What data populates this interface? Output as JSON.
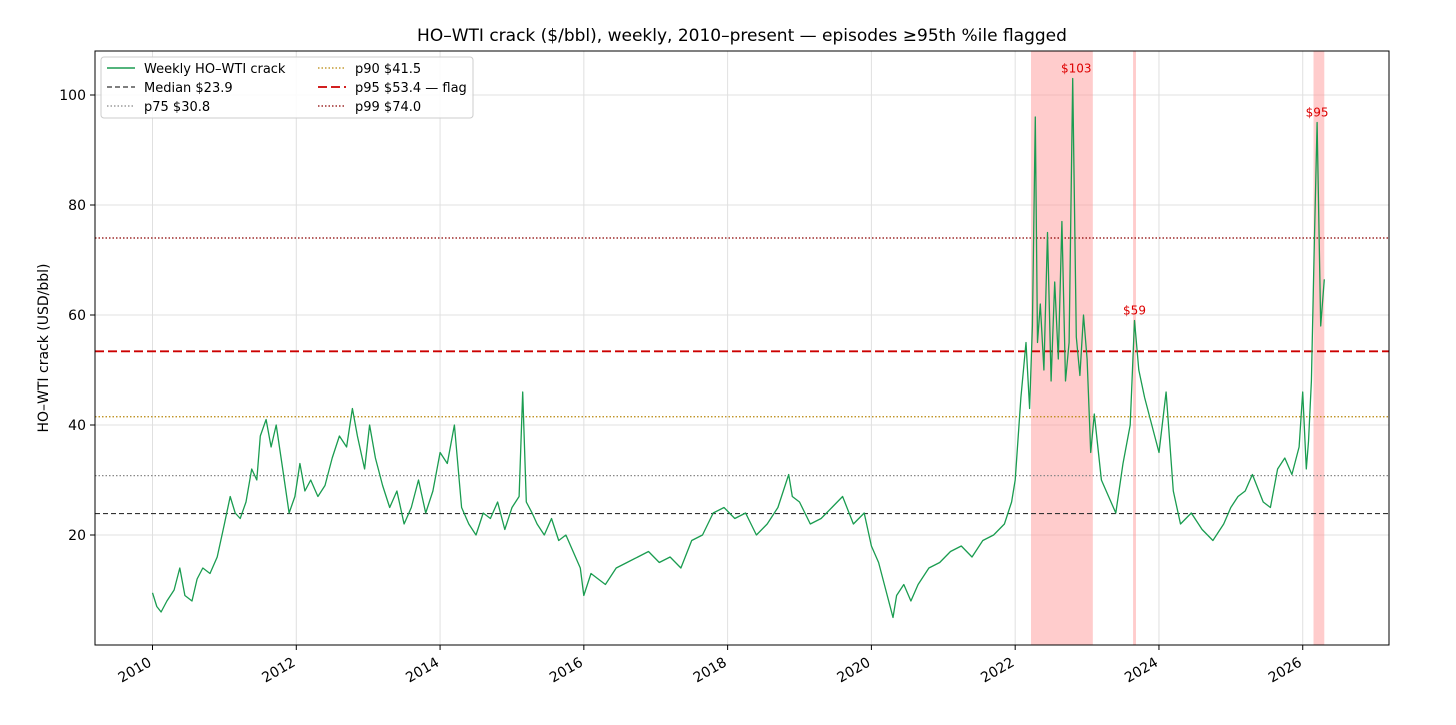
{
  "chart_data": {
    "type": "line",
    "title": "HO–WTI crack ($/bbl), weekly, 2010–present — episodes ≥95th %ile flagged",
    "xlabel": "",
    "ylabel": "HO–WTI crack (USD/bbl)",
    "xlim": [
      2009.2,
      2027.2
    ],
    "ylim": [
      0,
      108
    ],
    "x_ticks": [
      2010,
      2012,
      2014,
      2016,
      2018,
      2020,
      2022,
      2024,
      2026
    ],
    "x_tick_labels": [
      "2010",
      "2012",
      "2014",
      "2016",
      "2018",
      "2020",
      "2022",
      "2024",
      "2026"
    ],
    "y_ticks": [
      20,
      40,
      60,
      80,
      100
    ],
    "y_tick_labels": [
      "20",
      "40",
      "60",
      "80",
      "100"
    ],
    "grid": true,
    "legend_position": "top-left",
    "series": [
      {
        "name": "Weekly HO–WTI crack",
        "color": "#1a9c50",
        "x": [
          2010.0,
          2010.06,
          2010.12,
          2010.2,
          2010.3,
          2010.38,
          2010.45,
          2010.55,
          2010.62,
          2010.7,
          2010.8,
          2010.9,
          2011.0,
          2011.08,
          2011.15,
          2011.22,
          2011.3,
          2011.38,
          2011.45,
          2011.5,
          2011.58,
          2011.65,
          2011.72,
          2011.8,
          2011.9,
          2011.98,
          2012.05,
          2012.12,
          2012.2,
          2012.3,
          2012.4,
          2012.5,
          2012.6,
          2012.7,
          2012.78,
          2012.85,
          2012.95,
          2013.02,
          2013.1,
          2013.2,
          2013.3,
          2013.4,
          2013.5,
          2013.6,
          2013.7,
          2013.8,
          2013.9,
          2014.0,
          2014.1,
          2014.2,
          2014.3,
          2014.4,
          2014.5,
          2014.6,
          2014.7,
          2014.8,
          2014.9,
          2015.0,
          2015.1,
          2015.15,
          2015.2,
          2015.28,
          2015.35,
          2015.45,
          2015.55,
          2015.65,
          2015.75,
          2015.85,
          2015.95,
          2016.0,
          2016.1,
          2016.2,
          2016.3,
          2016.45,
          2016.6,
          2016.75,
          2016.9,
          2017.05,
          2017.2,
          2017.35,
          2017.5,
          2017.65,
          2017.8,
          2017.95,
          2018.1,
          2018.25,
          2018.4,
          2018.55,
          2018.7,
          2018.85,
          2018.9,
          2019.0,
          2019.15,
          2019.3,
          2019.45,
          2019.6,
          2019.75,
          2019.9,
          2020.0,
          2020.1,
          2020.2,
          2020.3,
          2020.35,
          2020.45,
          2020.55,
          2020.65,
          2020.8,
          2020.95,
          2021.1,
          2021.25,
          2021.4,
          2021.55,
          2021.7,
          2021.85,
          2021.95,
          2022.0,
          2022.08,
          2022.15,
          2022.2,
          2022.24,
          2022.28,
          2022.31,
          2022.35,
          2022.4,
          2022.45,
          2022.5,
          2022.55,
          2022.6,
          2022.65,
          2022.7,
          2022.75,
          2022.8,
          2022.85,
          2022.9,
          2022.95,
          2023.0,
          2023.05,
          2023.1,
          2023.2,
          2023.3,
          2023.4,
          2023.5,
          2023.6,
          2023.66,
          2023.72,
          2023.8,
          2023.9,
          2024.0,
          2024.1,
          2024.2,
          2024.3,
          2024.45,
          2024.6,
          2024.75,
          2024.9,
          2025.0,
          2025.1,
          2025.2,
          2025.3,
          2025.45,
          2025.55,
          2025.65,
          2025.75,
          2025.85,
          2025.95,
          2026.0,
          2026.05,
          2026.08,
          2026.12,
          2026.16,
          2026.2,
          2026.25,
          2026.3
        ],
        "y": [
          9.5,
          7,
          6,
          8,
          10,
          14,
          9,
          8,
          12,
          14,
          13,
          16,
          22,
          27,
          24,
          23,
          26,
          32,
          30,
          38,
          41,
          36,
          40,
          33,
          24,
          27,
          33,
          28,
          30,
          27,
          29,
          34,
          38,
          36,
          43,
          38,
          32,
          40,
          34,
          29,
          25,
          28,
          22,
          25,
          30,
          24,
          28,
          35,
          33,
          40,
          25,
          22,
          20,
          24,
          23,
          26,
          21,
          25,
          27,
          46,
          26,
          24,
          22,
          20,
          23,
          19,
          20,
          17,
          14,
          9,
          13,
          12,
          11,
          14,
          15,
          16,
          17,
          15,
          16,
          14,
          19,
          20,
          24,
          25,
          23,
          24,
          20,
          22,
          25,
          31,
          27,
          26,
          22,
          23,
          25,
          27,
          22,
          24,
          18,
          15,
          10,
          5,
          9,
          11,
          8,
          11,
          14,
          15,
          17,
          18,
          16,
          19,
          20,
          22,
          26,
          30,
          45,
          55,
          43,
          58,
          96,
          55,
          62,
          50,
          75,
          48,
          66,
          52,
          77,
          48,
          55,
          103,
          56,
          49,
          60,
          52,
          35,
          42,
          30,
          27,
          24,
          33,
          40,
          59,
          50,
          45,
          40,
          35,
          46,
          28,
          22,
          24,
          21,
          19,
          22,
          25,
          27,
          28,
          31,
          26,
          25,
          32,
          34,
          31,
          36,
          46,
          32,
          37,
          48,
          72,
          95,
          58,
          66.5
        ]
      }
    ],
    "reference_lines": [
      {
        "label": "Median $23.9",
        "value": 23.9,
        "color": "#333333",
        "style": "dashed"
      },
      {
        "label": "p75 $30.8",
        "value": 30.8,
        "color": "#888888",
        "style": "dotted"
      },
      {
        "label": "p90 $41.5",
        "value": 41.5,
        "color": "#b8860b",
        "style": "dotted"
      },
      {
        "label": "p95 $53.4 — flag",
        "value": 53.4,
        "color": "#cc0000",
        "style": "dashed-bold"
      },
      {
        "label": "p99 $74.0",
        "value": 74.0,
        "color": "#8b0000",
        "style": "dotted"
      }
    ],
    "flagged_episodes": [
      {
        "x_start": 2022.22,
        "x_end": 2023.08,
        "peak_x": 2022.85,
        "peak_y": 103,
        "label": "$103"
      },
      {
        "x_start": 2023.64,
        "x_end": 2023.68,
        "peak_x": 2023.66,
        "peak_y": 59,
        "label": "$59"
      },
      {
        "x_start": 2026.15,
        "x_end": 2026.3,
        "peak_x": 2026.2,
        "peak_y": 95,
        "label": "$95"
      }
    ],
    "legend": [
      "Weekly HO–WTI crack",
      "Median $23.9",
      "p75 $30.8",
      "p90 $41.5",
      "p95 $53.4 — flag",
      "p99 $74.0"
    ],
    "colors": {
      "episode_fill": "#ff9999",
      "annotation": "#dd0000",
      "grid": "#e0e0e0"
    }
  }
}
